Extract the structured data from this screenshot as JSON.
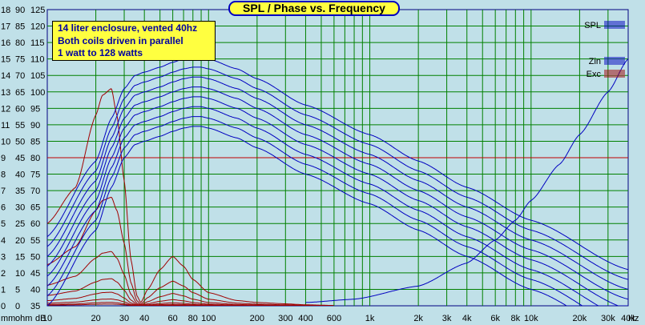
{
  "title": "SPL / Phase vs. Frequency",
  "notes": [
    "14 liter enclosure, vented 40hz",
    "Both coils driven in parallel",
    "1 watt to 128 watts"
  ],
  "axis_units": {
    "mm": "mm",
    "ohm": "ohm",
    "db": "dB",
    "hz": "Hz"
  },
  "colors": {
    "background": "#c0e0e8",
    "plot": "#c0e0e8",
    "grid": "#008000",
    "spl": "#0000c0",
    "zin": "#0000c0",
    "exc": "#a00000",
    "ref": "#c00000"
  },
  "chart_data": {
    "type": "line",
    "title": "SPL / Phase vs. Frequency",
    "xscale": "log",
    "xlim": [
      10,
      40000
    ],
    "x_tick_labels": [
      "10",
      "20",
      "30",
      "40",
      "60",
      "80",
      "100",
      "200",
      "300",
      "400",
      "600",
      "1k",
      "2k",
      "3k",
      "4k",
      "6k",
      "8k",
      "10k",
      "20k",
      "30k",
      "40k",
      "Hz"
    ],
    "x_tick_values": [
      10,
      20,
      30,
      40,
      60,
      80,
      100,
      200,
      300,
      400,
      600,
      1000,
      2000,
      3000,
      4000,
      6000,
      8000,
      10000,
      20000,
      30000,
      40000
    ],
    "y_axes": [
      {
        "unit": "mm",
        "range": [
          0,
          18
        ],
        "labels": [
          "0",
          "1",
          "2",
          "3",
          "4",
          "5",
          "6",
          "7",
          "8",
          "9",
          "10",
          "11",
          "12",
          "13",
          "14",
          "15",
          "16",
          "17",
          "18"
        ]
      },
      {
        "unit": "ohm",
        "range": [
          0,
          90
        ],
        "labels": [
          "0",
          "5",
          "10",
          "15",
          "20",
          "25",
          "30",
          "35",
          "40",
          "45",
          "50",
          "55",
          "60",
          "65",
          "70",
          "75",
          "80",
          "85",
          "90"
        ]
      },
      {
        "unit": "dB",
        "range": [
          35,
          125
        ],
        "labels": [
          "35",
          "40",
          "45",
          "50",
          "55",
          "60",
          "65",
          "70",
          "75",
          "80",
          "85",
          "90",
          "95",
          "100",
          "105",
          "110",
          "115",
          "120",
          "125"
        ]
      }
    ],
    "legend": [
      "SPL",
      "Zin",
      "Exc"
    ],
    "legend_position": "top-right",
    "grid": true,
    "spl_series_db_levels": [
      0,
      3,
      6,
      9,
      12,
      15,
      18,
      21
    ],
    "spl_base_points": [
      [
        10,
        35
      ],
      [
        20,
        58
      ],
      [
        25,
        71
      ],
      [
        30,
        80
      ],
      [
        35,
        84
      ],
      [
        40,
        85
      ],
      [
        50,
        86.5
      ],
      [
        60,
        88
      ],
      [
        70,
        89
      ],
      [
        80,
        89.5
      ],
      [
        90,
        89.5
      ],
      [
        100,
        89
      ],
      [
        150,
        86
      ],
      [
        200,
        83
      ],
      [
        400,
        75
      ],
      [
        1000,
        66
      ],
      [
        2000,
        58
      ],
      [
        4000,
        50
      ],
      [
        10000,
        40
      ],
      [
        40000,
        25
      ]
    ],
    "zin_points": [
      [
        400,
        36
      ],
      [
        800,
        37
      ],
      [
        2000,
        41
      ],
      [
        4000,
        48
      ],
      [
        6000,
        55
      ],
      [
        8000,
        61
      ],
      [
        10000,
        67
      ],
      [
        15000,
        78
      ],
      [
        20000,
        87
      ],
      [
        30000,
        100
      ],
      [
        40000,
        110
      ]
    ],
    "exc_base_points": [
      [
        10,
        1.25
      ],
      [
        15,
        1.8
      ],
      [
        20,
        2.9
      ],
      [
        22,
        3.2
      ],
      [
        25,
        3.3
      ],
      [
        27,
        2.9
      ],
      [
        30,
        1.9
      ],
      [
        33,
        0.7
      ],
      [
        36,
        0.15
      ],
      [
        38,
        0.05
      ],
      [
        42,
        0.25
      ],
      [
        50,
        0.55
      ],
      [
        60,
        0.75
      ],
      [
        70,
        0.6
      ],
      [
        80,
        0.4
      ],
      [
        100,
        0.2
      ],
      [
        150,
        0.08
      ],
      [
        200,
        0.05
      ],
      [
        300,
        0.03
      ],
      [
        400,
        0.015
      ],
      [
        600,
        0.005
      ]
    ],
    "exc_power_ratios": [
      1,
      2,
      4,
      8,
      16,
      32,
      64,
      128
    ],
    "reference_line_mm": 9
  }
}
